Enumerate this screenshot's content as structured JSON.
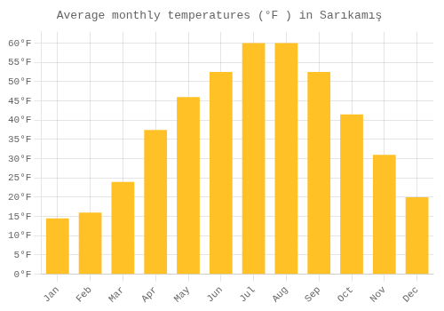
{
  "chart_data": {
    "type": "bar",
    "title": "Average monthly temperatures (°F ) in Sarıkamış",
    "categories": [
      "Jan",
      "Feb",
      "Mar",
      "Apr",
      "May",
      "Jun",
      "Jul",
      "Aug",
      "Sep",
      "Oct",
      "Nov",
      "Dec"
    ],
    "values": [
      14.5,
      16,
      24,
      37.5,
      46,
      52.5,
      60,
      60,
      52.5,
      41.5,
      31,
      20
    ],
    "color": "#FFC125",
    "ylim": [
      0,
      63
    ],
    "yticks": [
      {
        "value": 0,
        "label": "0°F"
      },
      {
        "value": 5,
        "label": "5°F"
      },
      {
        "value": 10,
        "label": "10°F"
      },
      {
        "value": 15,
        "label": "15°F"
      },
      {
        "value": 20,
        "label": "20°F"
      },
      {
        "value": 25,
        "label": "25°F"
      },
      {
        "value": 30,
        "label": "30°F"
      },
      {
        "value": 35,
        "label": "35°F"
      },
      {
        "value": 40,
        "label": "40°F"
      },
      {
        "value": 45,
        "label": "45°F"
      },
      {
        "value": 50,
        "label": "50°F"
      },
      {
        "value": 55,
        "label": "55°F"
      },
      {
        "value": 60,
        "label": "60°F"
      }
    ],
    "grid": true
  }
}
